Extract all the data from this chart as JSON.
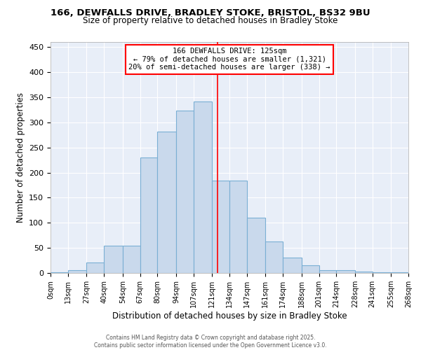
{
  "title_line1": "166, DEWFALLS DRIVE, BRADLEY STOKE, BRISTOL, BS32 9BU",
  "title_line2": "Size of property relative to detached houses in Bradley Stoke",
  "xlabel": "Distribution of detached houses by size in Bradley Stoke",
  "ylabel": "Number of detached properties",
  "bin_labels": [
    "0sqm",
    "13sqm",
    "27sqm",
    "40sqm",
    "54sqm",
    "67sqm",
    "80sqm",
    "94sqm",
    "107sqm",
    "121sqm",
    "134sqm",
    "147sqm",
    "161sqm",
    "174sqm",
    "188sqm",
    "201sqm",
    "214sqm",
    "228sqm",
    "241sqm",
    "255sqm",
    "268sqm"
  ],
  "bin_edges": [
    0,
    13,
    27,
    40,
    54,
    67,
    80,
    94,
    107,
    121,
    134,
    147,
    161,
    174,
    188,
    201,
    214,
    228,
    241,
    255,
    268
  ],
  "bar_heights": [
    2,
    6,
    21,
    55,
    55,
    230,
    282,
    323,
    342,
    184,
    184,
    110,
    63,
    30,
    16,
    6,
    5,
    3,
    2,
    2
  ],
  "bar_color": "#c9d9ec",
  "bar_edge_color": "#7aafd4",
  "vline_x": 125,
  "vline_color": "red",
  "annotation_line1": "166 DEWFALLS DRIVE: 125sqm",
  "annotation_line2": "← 79% of detached houses are smaller (1,321)",
  "annotation_line3": "20% of semi-detached houses are larger (338) →",
  "annotation_box_color": "white",
  "annotation_box_edge_color": "red",
  "ylim": [
    0,
    460
  ],
  "yticks": [
    0,
    50,
    100,
    150,
    200,
    250,
    300,
    350,
    400,
    450
  ],
  "bg_color": "#ffffff",
  "plot_bg_color": "#e8eef8",
  "grid_color": "#ffffff",
  "footer_line1": "Contains HM Land Registry data © Crown copyright and database right 2025.",
  "footer_line2": "Contains public sector information licensed under the Open Government Licence v3.0."
}
